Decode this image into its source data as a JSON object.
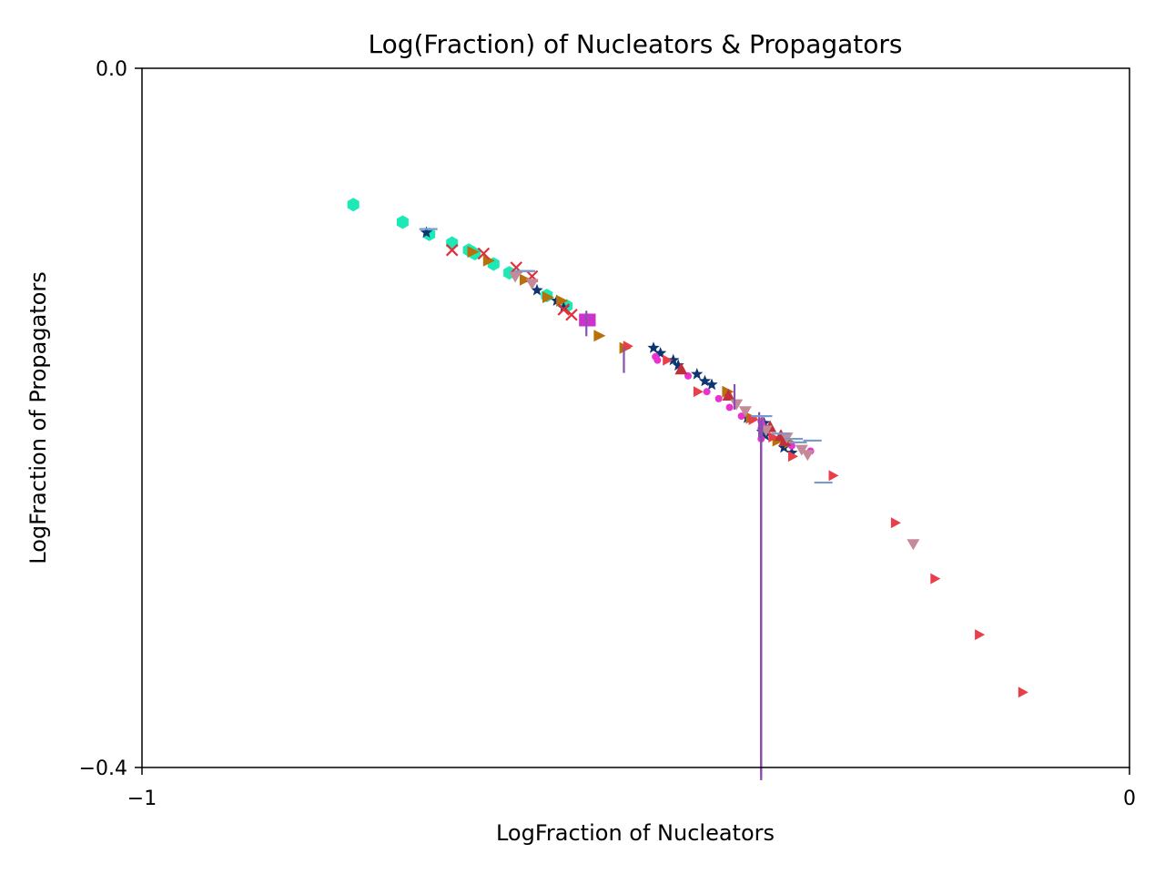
{
  "chart_data": {
    "type": "scatter",
    "title": "Log(Fraction) of Nucleators & Propagators",
    "xlabel": "LogFraction of Nucleators",
    "ylabel": "LogFraction of Propagators",
    "xlim": [
      -1,
      0
    ],
    "ylim": [
      -0.4,
      0.0
    ],
    "x_tick_labels": [
      "−1",
      "0"
    ],
    "y_tick_labels": [
      "0.0",
      "−0.4"
    ],
    "grid": false,
    "series": [
      {
        "marker": "hexagon",
        "color": "#1de9b6",
        "points": [
          [
            -0.786,
            -0.078
          ],
          [
            -0.736,
            -0.088
          ],
          [
            -0.709,
            -0.095
          ],
          [
            -0.686,
            -0.1
          ],
          [
            -0.669,
            -0.104
          ],
          [
            -0.663,
            -0.106
          ],
          [
            -0.644,
            -0.112
          ],
          [
            -0.628,
            -0.117
          ],
          [
            -0.59,
            -0.13
          ],
          [
            -0.57,
            -0.136
          ]
        ]
      },
      {
        "marker": "star",
        "color": "#0d3572",
        "points": [
          [
            -0.712,
            -0.094
          ],
          [
            -0.6,
            -0.127
          ],
          [
            -0.58,
            -0.133
          ],
          [
            -0.573,
            -0.137
          ],
          [
            -0.482,
            -0.16
          ],
          [
            -0.475,
            -0.163
          ],
          [
            -0.462,
            -0.167
          ],
          [
            -0.457,
            -0.17
          ],
          [
            -0.438,
            -0.175
          ],
          [
            -0.43,
            -0.179
          ],
          [
            -0.423,
            -0.181
          ],
          [
            -0.387,
            -0.2
          ],
          [
            -0.372,
            -0.208
          ],
          [
            -0.369,
            -0.21
          ],
          [
            -0.35,
            -0.217
          ],
          [
            -0.342,
            -0.22
          ],
          [
            -0.37,
            -0.203
          ]
        ]
      },
      {
        "marker": "triangle-right",
        "color": "#b8700a",
        "points": [
          [
            -0.665,
            -0.105
          ],
          [
            -0.649,
            -0.11
          ],
          [
            -0.612,
            -0.121
          ],
          [
            -0.589,
            -0.131
          ],
          [
            -0.575,
            -0.133
          ],
          [
            -0.537,
            -0.153
          ],
          [
            -0.511,
            -0.16
          ],
          [
            -0.407,
            -0.185
          ],
          [
            -0.383,
            -0.2
          ],
          [
            -0.356,
            -0.213
          ],
          [
            -0.344,
            -0.214
          ]
        ]
      },
      {
        "marker": "x",
        "color": "#e0303a",
        "points": [
          [
            -0.686,
            -0.104
          ],
          [
            -0.654,
            -0.106
          ],
          [
            -0.621,
            -0.114
          ],
          [
            -0.605,
            -0.119
          ],
          [
            -0.573,
            -0.138
          ],
          [
            -0.565,
            -0.141
          ]
        ]
      },
      {
        "marker": "triangle-right-small",
        "color": "#e8404a",
        "points": [
          [
            -0.508,
            -0.159
          ],
          [
            -0.468,
            -0.167
          ],
          [
            -0.437,
            -0.185
          ],
          [
            -0.381,
            -0.201
          ],
          [
            -0.361,
            -0.211
          ],
          [
            -0.341,
            -0.222
          ],
          [
            -0.3,
            -0.233
          ],
          [
            -0.237,
            -0.26
          ],
          [
            -0.197,
            -0.292
          ],
          [
            -0.152,
            -0.324
          ],
          [
            -0.108,
            -0.357
          ]
        ]
      },
      {
        "marker": "square",
        "color": "#cc33cc",
        "points": [
          [
            -0.551,
            -0.144
          ],
          [
            -0.547,
            -0.144
          ]
        ]
      },
      {
        "marker": "dot",
        "color": "#e933d0",
        "points": [
          [
            -0.48,
            -0.165
          ],
          [
            -0.478,
            -0.167
          ],
          [
            -0.447,
            -0.176
          ],
          [
            -0.428,
            -0.185
          ],
          [
            -0.416,
            -0.189
          ],
          [
            -0.405,
            -0.194
          ],
          [
            -0.373,
            -0.212
          ],
          [
            -0.342,
            -0.216
          ],
          [
            -0.323,
            -0.219
          ],
          [
            -0.373,
            -0.206
          ],
          [
            -0.393,
            -0.199
          ],
          [
            -0.373,
            -0.202
          ],
          [
            -0.372,
            -0.204
          ]
        ]
      },
      {
        "marker": "triangle-up",
        "color": "#c0303a",
        "points": [
          [
            -0.454,
            -0.172
          ],
          [
            -0.406,
            -0.187
          ],
          [
            -0.364,
            -0.205
          ],
          [
            -0.353,
            -0.21
          ],
          [
            -0.349,
            -0.213
          ]
        ]
      },
      {
        "marker": "triangle-down",
        "color": "#c48a9a",
        "points": [
          [
            -0.622,
            -0.119
          ],
          [
            -0.605,
            -0.123
          ],
          [
            -0.398,
            -0.192
          ],
          [
            -0.389,
            -0.196
          ],
          [
            -0.368,
            -0.207
          ],
          [
            -0.347,
            -0.211
          ],
          [
            -0.332,
            -0.218
          ],
          [
            -0.326,
            -0.221
          ],
          [
            -0.219,
            -0.272
          ]
        ]
      },
      {
        "marker": "vline",
        "color": "#8c4fb0",
        "points": [
          [
            -0.55,
            -0.146
          ],
          [
            -0.512,
            -0.167
          ],
          [
            -0.4,
            -0.188
          ],
          [
            -0.375,
            -0.204
          ],
          [
            -0.372,
            -0.206
          ],
          [
            -0.373,
            -0.209
          ],
          [
            -0.373,
            -0.212
          ],
          [
            -0.373,
            -0.214
          ],
          [
            -0.373,
            -0.217
          ],
          [
            -0.373,
            -0.219
          ],
          [
            -0.373,
            -0.221
          ],
          [
            -0.373,
            -0.222
          ],
          [
            -0.373,
            -0.224
          ],
          [
            -0.373,
            -0.226
          ],
          [
            -0.373,
            -0.228
          ],
          [
            -0.373,
            -0.23
          ],
          [
            -0.373,
            -0.232
          ],
          [
            -0.373,
            -0.234
          ],
          [
            -0.373,
            -0.236
          ],
          [
            -0.373,
            -0.238
          ],
          [
            -0.373,
            -0.239
          ],
          [
            -0.373,
            -0.241
          ],
          [
            -0.373,
            -0.243
          ],
          [
            -0.373,
            -0.245
          ],
          [
            -0.373,
            -0.247
          ],
          [
            -0.373,
            -0.249
          ],
          [
            -0.373,
            -0.251
          ],
          [
            -0.373,
            -0.253
          ],
          [
            -0.373,
            -0.255
          ],
          [
            -0.373,
            -0.256
          ],
          [
            -0.373,
            -0.258
          ],
          [
            -0.373,
            -0.26
          ],
          [
            -0.373,
            -0.262
          ],
          [
            -0.373,
            -0.264
          ],
          [
            -0.373,
            -0.266
          ],
          [
            -0.373,
            -0.268
          ],
          [
            -0.373,
            -0.27
          ],
          [
            -0.373,
            -0.272
          ],
          [
            -0.373,
            -0.274
          ],
          [
            -0.373,
            -0.275
          ],
          [
            -0.373,
            -0.277
          ],
          [
            -0.373,
            -0.279
          ],
          [
            -0.373,
            -0.281
          ],
          [
            -0.373,
            -0.283
          ],
          [
            -0.373,
            -0.285
          ],
          [
            -0.373,
            -0.287
          ],
          [
            -0.373,
            -0.289
          ],
          [
            -0.373,
            -0.291
          ],
          [
            -0.373,
            -0.293
          ],
          [
            -0.373,
            -0.294
          ],
          [
            -0.373,
            -0.296
          ],
          [
            -0.373,
            -0.298
          ],
          [
            -0.373,
            -0.3
          ],
          [
            -0.373,
            -0.302
          ],
          [
            -0.373,
            -0.304
          ],
          [
            -0.373,
            -0.306
          ],
          [
            -0.373,
            -0.308
          ],
          [
            -0.373,
            -0.31
          ],
          [
            -0.373,
            -0.312
          ],
          [
            -0.373,
            -0.313
          ],
          [
            -0.373,
            -0.315
          ],
          [
            -0.373,
            -0.317
          ],
          [
            -0.373,
            -0.319
          ],
          [
            -0.373,
            -0.321
          ],
          [
            -0.373,
            -0.323
          ],
          [
            -0.373,
            -0.325
          ],
          [
            -0.373,
            -0.327
          ],
          [
            -0.373,
            -0.329
          ],
          [
            -0.373,
            -0.331
          ],
          [
            -0.373,
            -0.333
          ],
          [
            -0.373,
            -0.334
          ],
          [
            -0.373,
            -0.336
          ],
          [
            -0.373,
            -0.338
          ],
          [
            -0.373,
            -0.34
          ],
          [
            -0.373,
            -0.342
          ],
          [
            -0.373,
            -0.344
          ],
          [
            -0.373,
            -0.346
          ],
          [
            -0.373,
            -0.348
          ],
          [
            -0.373,
            -0.35
          ],
          [
            -0.373,
            -0.352
          ],
          [
            -0.373,
            -0.353
          ],
          [
            -0.373,
            -0.355
          ],
          [
            -0.373,
            -0.357
          ],
          [
            -0.373,
            -0.359
          ],
          [
            -0.373,
            -0.361
          ],
          [
            -0.373,
            -0.363
          ],
          [
            -0.373,
            -0.365
          ],
          [
            -0.373,
            -0.367
          ],
          [
            -0.373,
            -0.369
          ],
          [
            -0.373,
            -0.371
          ],
          [
            -0.373,
            -0.372
          ],
          [
            -0.373,
            -0.374
          ],
          [
            -0.373,
            -0.376
          ],
          [
            -0.373,
            -0.378
          ],
          [
            -0.373,
            -0.38
          ],
          [
            -0.373,
            -0.382
          ],
          [
            -0.373,
            -0.384
          ],
          [
            -0.373,
            -0.386
          ],
          [
            -0.373,
            -0.388
          ],
          [
            -0.373,
            -0.39
          ],
          [
            -0.373,
            -0.391
          ],
          [
            -0.373,
            -0.393
          ],
          [
            -0.373,
            -0.395
          ],
          [
            -0.373,
            -0.397
          ],
          [
            -0.373,
            -0.399
          ],
          [
            -0.373,
            -0.4
          ],
          [
            -0.373,
            -0.4
          ],
          [
            -0.373,
            -0.4
          ],
          [
            -0.373,
            -0.4
          ],
          [
            -0.373,
            -0.4
          ],
          [
            -0.373,
            -0.4
          ],
          [
            -0.373,
            -0.4
          ],
          [
            -0.373,
            -0.4
          ],
          [
            -0.373,
            -0.4
          ],
          [
            -0.373,
            -0.4
          ],
          [
            -0.373,
            -0.4
          ],
          [
            -0.373,
            -0.4
          ],
          [
            -0.373,
            -0.4
          ],
          [
            -0.373,
            -0.4
          ],
          [
            -0.373,
            -0.4
          ],
          [
            -0.373,
            -0.4
          ],
          [
            -0.373,
            -0.4
          ],
          [
            -0.373,
            -0.4
          ],
          [
            -0.373,
            -0.4
          ],
          [
            -0.373,
            -0.4
          ],
          [
            -0.373,
            -0.4
          ],
          [
            -0.373,
            -0.4
          ],
          [
            -0.373,
            -0.4
          ],
          [
            -0.373,
            -0.4
          ],
          [
            -0.373,
            -0.4
          ],
          [
            -0.373,
            -0.4
          ],
          [
            -0.373,
            -0.4
          ],
          [
            -0.373,
            -0.4
          ],
          [
            -0.373,
            -0.4
          ],
          [
            -0.373,
            -0.4
          ],
          [
            -0.373,
            -0.4
          ],
          [
            -0.373,
            -0.4
          ],
          [
            -0.373,
            -0.4
          ],
          [
            -0.373,
            -0.4
          ],
          [
            -0.373,
            -0.4
          ],
          [
            -0.373,
            -0.4
          ],
          [
            -0.373,
            -0.4
          ],
          [
            -0.373,
            -0.4
          ],
          [
            -0.373,
            -0.4
          ],
          [
            -0.373,
            -0.4
          ],
          [
            -0.373,
            -0.4
          ],
          [
            -0.373,
            -0.4
          ],
          [
            -0.373,
            -0.4
          ],
          [
            -0.373,
            -0.4
          ],
          [
            -0.373,
            -0.4
          ],
          [
            -0.373,
            -0.4
          ],
          [
            -0.373,
            -0.4
          ],
          [
            -0.373,
            -0.4
          ],
          [
            -0.373,
            -0.4
          ],
          [
            -0.373,
            -0.4
          ],
          [
            -0.373,
            -0.4
          ],
          [
            -0.373,
            -0.4
          ],
          [
            -0.373,
            -0.4
          ],
          [
            -0.373,
            -0.4
          ],
          [
            -0.373,
            -0.4
          ],
          [
            -0.373,
            -0.4
          ],
          [
            -0.373,
            -0.4
          ],
          [
            -0.373,
            -0.4
          ],
          [
            -0.373,
            -0.4
          ],
          [
            -0.373,
            -0.4
          ],
          [
            -0.373,
            -0.4
          ],
          [
            -0.373,
            -0.4
          ],
          [
            -0.373,
            -0.4
          ],
          [
            -0.373,
            -0.4
          ],
          [
            -0.373,
            -0.4
          ],
          [
            -0.373,
            -0.4
          ],
          [
            -0.373,
            -0.4
          ],
          [
            -0.373,
            -0.4
          ],
          [
            -0.373,
            -0.4
          ],
          [
            -0.373,
            -0.4
          ],
          [
            -0.373,
            -0.4
          ],
          [
            -0.373,
            -0.4
          ],
          [
            -0.373,
            -0.4
          ],
          [
            -0.373,
            -0.4
          ],
          [
            -0.373,
            -0.4
          ],
          [
            -0.373,
            -0.4
          ],
          [
            -0.373,
            -0.4
          ],
          [
            -0.373,
            -0.4
          ],
          [
            -0.373,
            -0.4
          ],
          [
            -0.373,
            -0.4
          ],
          [
            -0.373,
            -0.4
          ],
          [
            -0.373,
            -0.4
          ],
          [
            -0.373,
            -0.4
          ],
          [
            -0.373,
            -0.4
          ]
        ]
      },
      {
        "marker": "hline",
        "color": "#7a9acc",
        "points": [
          [
            -0.71,
            -0.092
          ],
          [
            -0.613,
            -0.116
          ],
          [
            -0.611,
            -0.116
          ],
          [
            -0.374,
            -0.199
          ],
          [
            -0.371,
            -0.199
          ],
          [
            -0.353,
            -0.209
          ],
          [
            -0.34,
            -0.212
          ],
          [
            -0.336,
            -0.214
          ],
          [
            -0.31,
            -0.237
          ],
          [
            -0.321,
            -0.213
          ]
        ]
      }
    ]
  }
}
